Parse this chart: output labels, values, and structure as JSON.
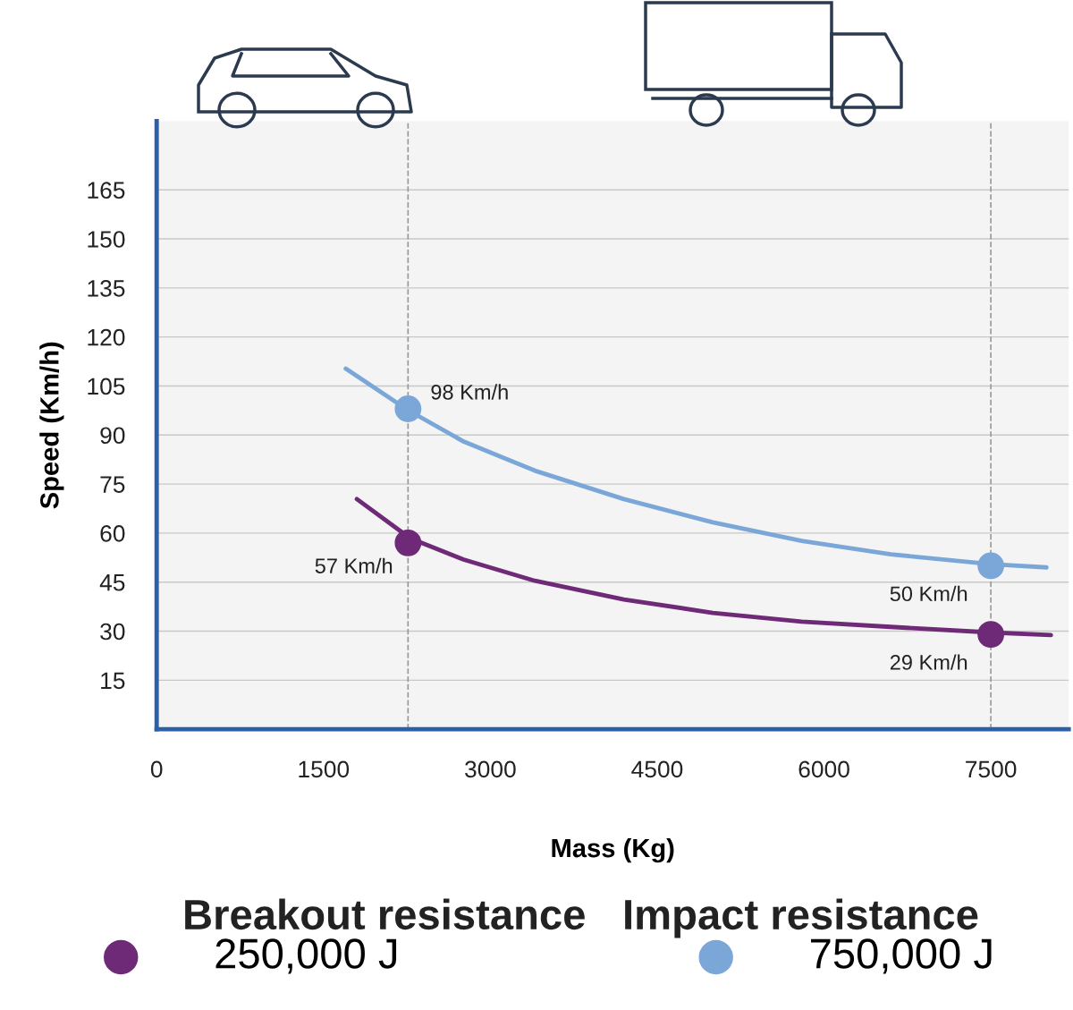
{
  "chart_data": {
    "type": "line",
    "xlabel": "Mass (Kg)",
    "ylabel": "Speed (Km/h)",
    "xlim": [
      0,
      8200
    ],
    "xticks": [
      0,
      1500,
      3000,
      4500,
      6000,
      7500
    ],
    "ylim": [
      0,
      186
    ],
    "yticks": [
      15,
      30,
      45,
      60,
      75,
      90,
      105,
      120,
      135,
      150,
      165
    ],
    "grid": "y",
    "legend": "bottom",
    "series": [
      {
        "color": "#7ba7d8",
        "x": [
          1700,
          2260,
          2760,
          3400,
          4200,
          5000,
          5800,
          6600,
          7500,
          8000
        ],
        "values": [
          110.3,
          97.6,
          88.0,
          79.1,
          70.4,
          63.3,
          57.6,
          53.5,
          50.5,
          49.5
        ]
      },
      {
        "color": "#6e2a77",
        "x": [
          1800,
          2280,
          2760,
          3400,
          4200,
          5000,
          5800,
          6600,
          7500,
          8040
        ],
        "values": [
          70.4,
          58.4,
          51.9,
          45.4,
          39.7,
          35.6,
          32.9,
          31.3,
          29.6,
          28.8
        ]
      },
      {
        "type": "scatter",
        "name": "250,000 J",
        "color": "#6e2a77",
        "x": [
          2260,
          7500
        ],
        "values": [
          57,
          29
        ],
        "value_labels": [
          "57 Km/h",
          "29 Km/h"
        ]
      },
      {
        "type": "scatter",
        "name": "750,000 J",
        "color": "#7ba7d8",
        "x": [
          2260,
          7500
        ],
        "values": [
          98,
          50
        ],
        "value_labels": [
          "98 Km/h",
          "50 Km/h"
        ]
      }
    ],
    "ref_lines": [
      {
        "axis": "x",
        "value": 2260,
        "color": "#999999",
        "line_style": "dashed"
      },
      {
        "axis": "x",
        "value": 7500,
        "color": "#999999",
        "line_style": "dashed"
      }
    ],
    "annotations": [
      "Breakout resistance",
      "Impact resistance"
    ]
  }
}
